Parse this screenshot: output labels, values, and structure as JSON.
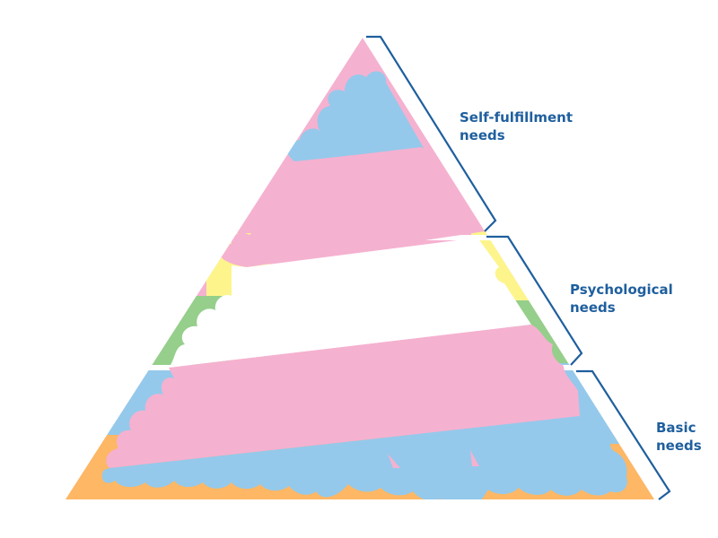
{
  "colors": {
    "pink": "#f5b1d0",
    "blue": "#94c9eb",
    "yellow": "#fdf58c",
    "green": "#95cf8b",
    "orange": "#fdb765",
    "white": "#ffffff",
    "bracket": "#1f5f9e"
  },
  "tiers": [
    {
      "id": "self-fulfillment",
      "lines": [
        "Self-fulfillment",
        "needs"
      ]
    },
    {
      "id": "psychological",
      "lines": [
        "Psychological",
        "needs"
      ]
    },
    {
      "id": "basic",
      "lines": [
        "Basic",
        "needs"
      ]
    }
  ]
}
